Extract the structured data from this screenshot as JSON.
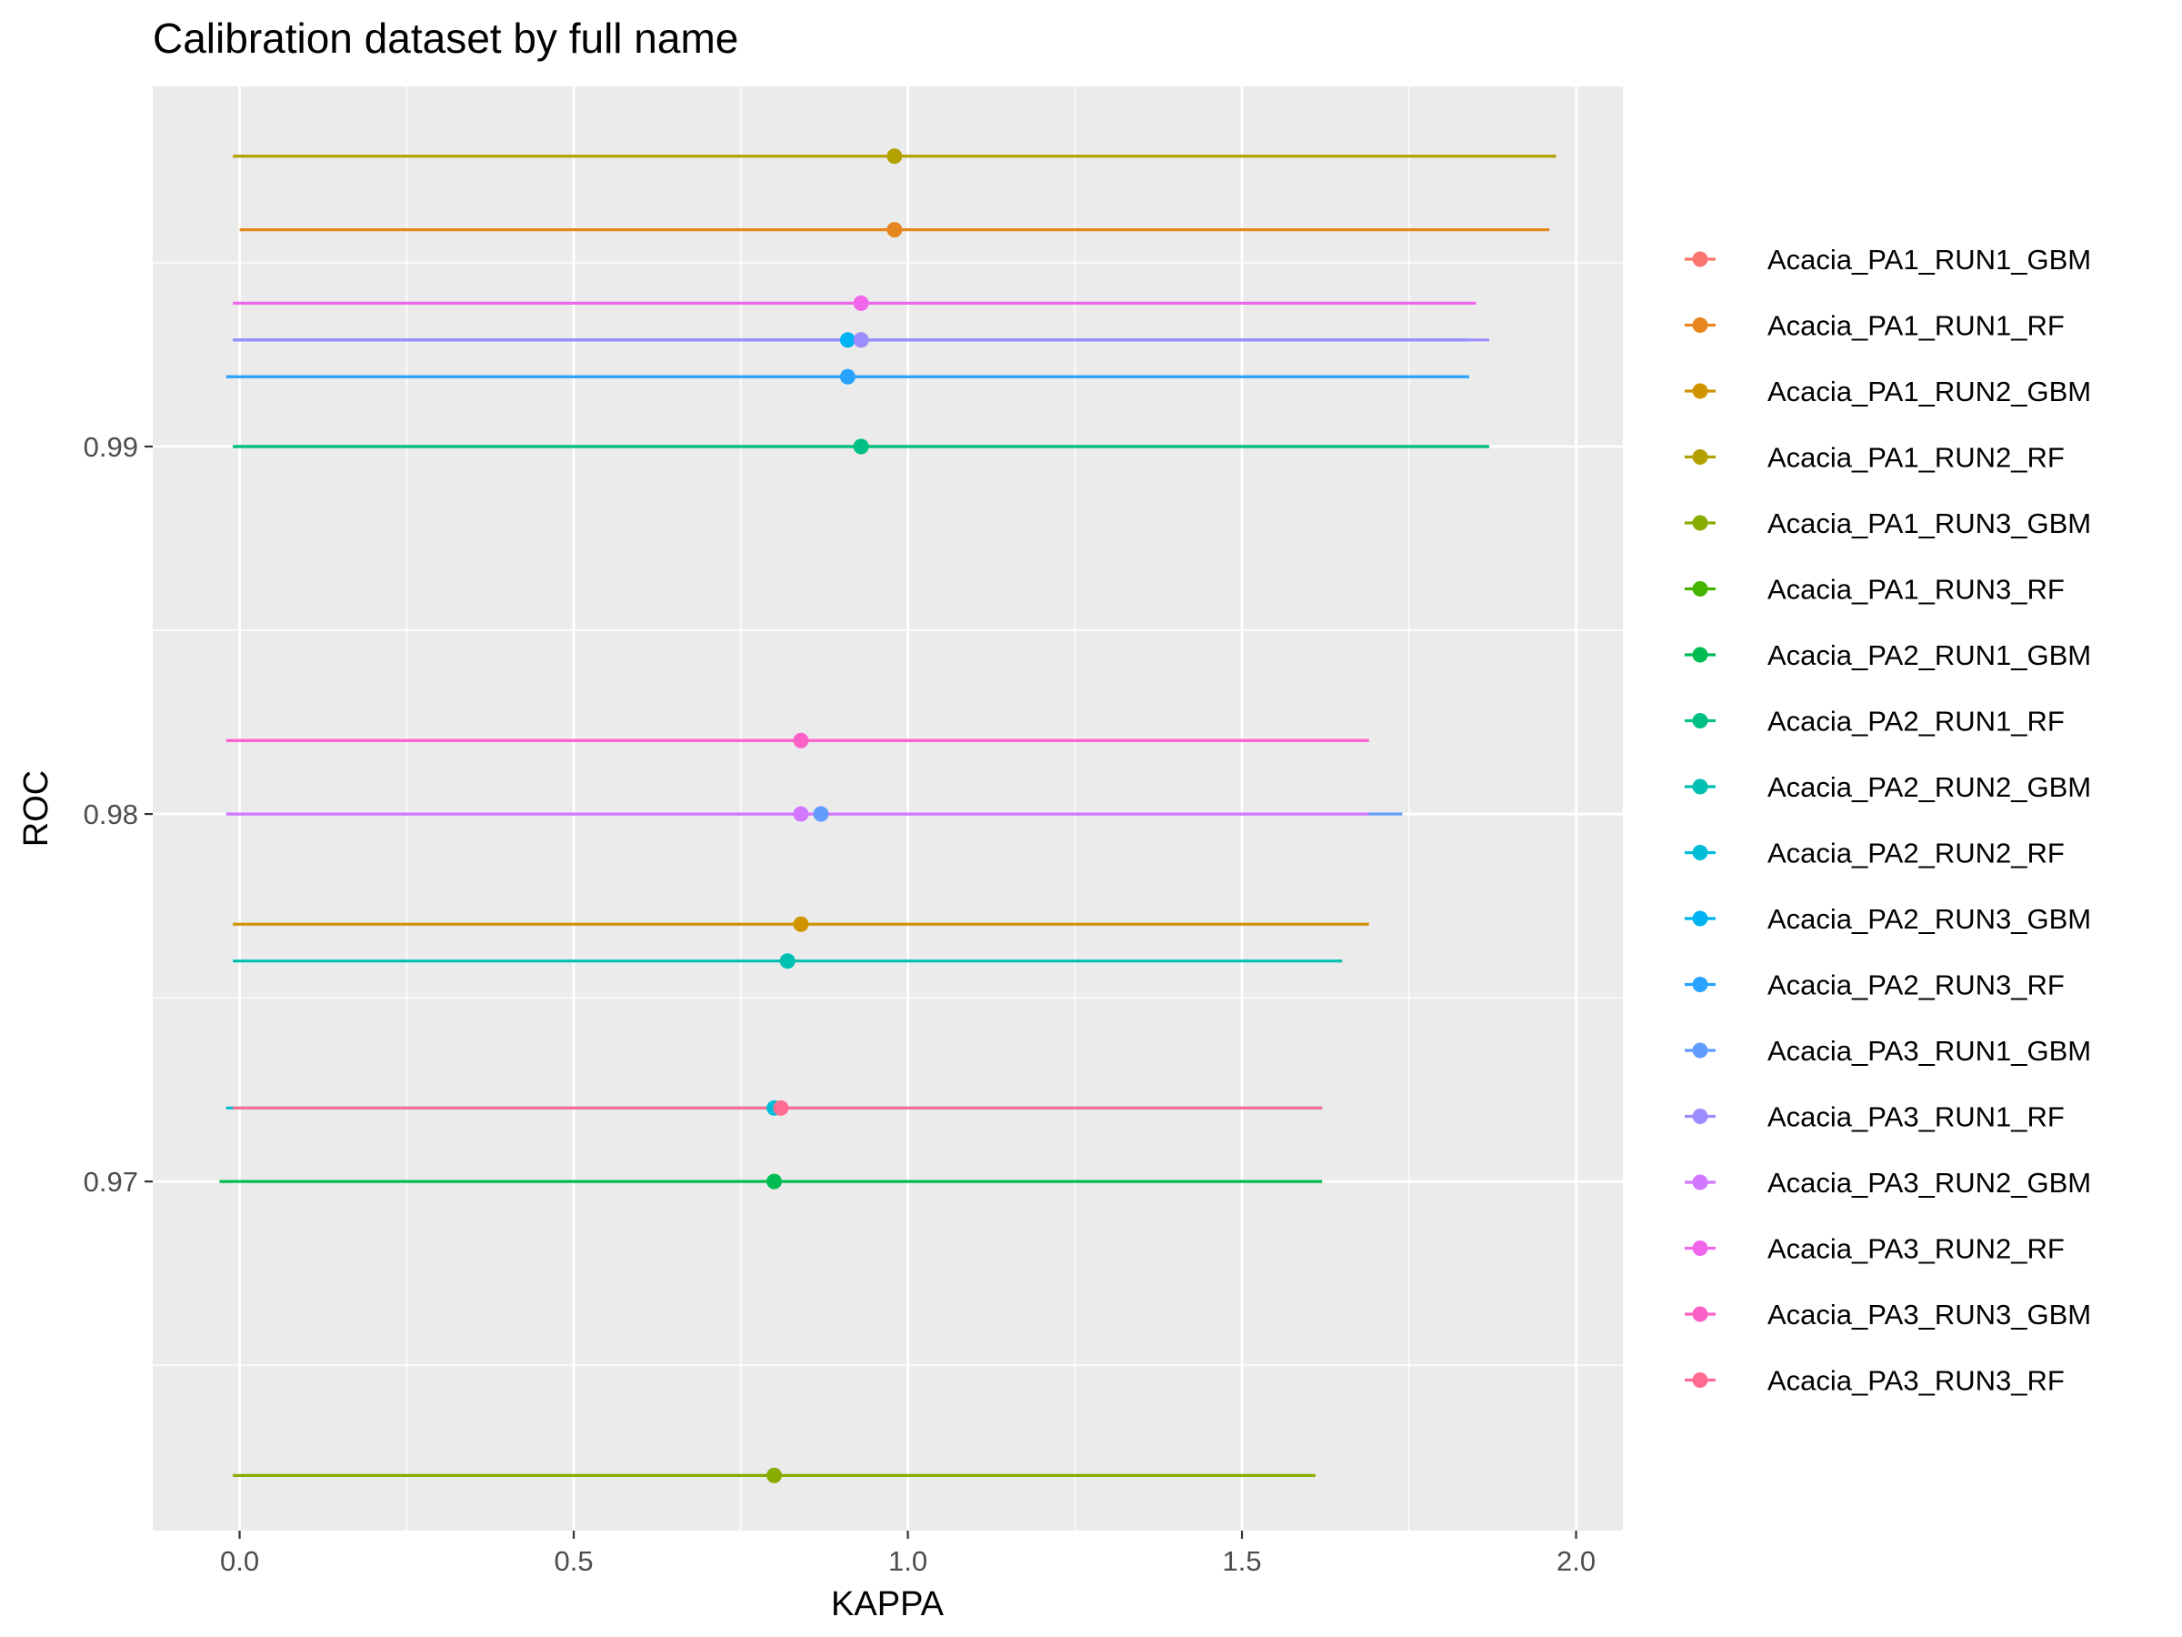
{
  "chart_data": {
    "type": "scatter",
    "title": "Calibration dataset by full name",
    "xlabel": "KAPPA",
    "ylabel": "ROC",
    "xlim": [
      -0.13,
      2.07
    ],
    "ylim": [
      0.9605,
      0.9998
    ],
    "x_ticks": [
      0.0,
      0.5,
      1.0,
      1.5,
      2.0
    ],
    "x_tick_labels": [
      "0.0",
      "0.5",
      "1.0",
      "1.5",
      "2.0"
    ],
    "y_ticks": [
      0.97,
      0.98,
      0.99
    ],
    "y_tick_labels": [
      "0.97",
      "0.98",
      "0.99"
    ],
    "grid": true,
    "legend_position": "right",
    "series": [
      {
        "name": "Acacia_PA1_RUN1_GBM",
        "color": "#F8766D",
        "kappa": 0.93,
        "kappa_min": 0.01,
        "kappa_max": 1.84,
        "roc": 0.9929
      },
      {
        "name": "Acacia_PA1_RUN1_RF",
        "color": "#E7851E",
        "kappa": 0.98,
        "kappa_min": 0.0,
        "kappa_max": 1.96,
        "roc": 0.9959
      },
      {
        "name": "Acacia_PA1_RUN2_GBM",
        "color": "#D09400",
        "kappa": 0.84,
        "kappa_min": -0.01,
        "kappa_max": 1.69,
        "roc": 0.977
      },
      {
        "name": "Acacia_PA1_RUN2_RF",
        "color": "#B2A100",
        "kappa": 0.98,
        "kappa_min": -0.01,
        "kappa_max": 1.97,
        "roc": 0.9979
      },
      {
        "name": "Acacia_PA1_RUN3_GBM",
        "color": "#89AC00",
        "kappa": 0.8,
        "kappa_min": -0.01,
        "kappa_max": 1.61,
        "roc": 0.962
      },
      {
        "name": "Acacia_PA1_RUN3_RF",
        "color": "#45B500",
        "kappa": 0.93,
        "kappa_min": -0.01,
        "kappa_max": 1.87,
        "roc": 0.99
      },
      {
        "name": "Acacia_PA2_RUN1_GBM",
        "color": "#00BC51",
        "kappa": 0.8,
        "kappa_min": -0.03,
        "kappa_max": 1.62,
        "roc": 0.97
      },
      {
        "name": "Acacia_PA2_RUN1_RF",
        "color": "#00C087",
        "kappa": 0.93,
        "kappa_min": -0.01,
        "kappa_max": 1.87,
        "roc": 0.99
      },
      {
        "name": "Acacia_PA2_RUN2_GBM",
        "color": "#00C0B2",
        "kappa": 0.82,
        "kappa_min": -0.01,
        "kappa_max": 1.65,
        "roc": 0.976
      },
      {
        "name": "Acacia_PA2_RUN2_RF",
        "color": "#00BCD6",
        "kappa": 0.8,
        "kappa_min": -0.02,
        "kappa_max": 1.62,
        "roc": 0.972
      },
      {
        "name": "Acacia_PA2_RUN3_GBM",
        "color": "#00B3F2",
        "kappa": 0.91,
        "kappa_min": -0.01,
        "kappa_max": 1.84,
        "roc": 0.9929
      },
      {
        "name": "Acacia_PA2_RUN3_RF",
        "color": "#29A3FF",
        "kappa": 0.91,
        "kappa_min": -0.02,
        "kappa_max": 1.84,
        "roc": 0.9919
      },
      {
        "name": "Acacia_PA3_RUN1_GBM",
        "color": "#619CFF",
        "kappa": 0.87,
        "kappa_min": -0.02,
        "kappa_max": 1.74,
        "roc": 0.98
      },
      {
        "name": "Acacia_PA3_RUN1_RF",
        "color": "#9C8DFF",
        "kappa": 0.93,
        "kappa_min": -0.01,
        "kappa_max": 1.87,
        "roc": 0.9929
      },
      {
        "name": "Acacia_PA3_RUN2_GBM",
        "color": "#D277FF",
        "kappa": 0.84,
        "kappa_min": -0.02,
        "kappa_max": 1.69,
        "roc": 0.98
      },
      {
        "name": "Acacia_PA3_RUN2_RF",
        "color": "#F066EA",
        "kappa": 0.93,
        "kappa_min": -0.01,
        "kappa_max": 1.85,
        "roc": 0.9939
      },
      {
        "name": "Acacia_PA3_RUN3_GBM",
        "color": "#FC61C8",
        "kappa": 0.84,
        "kappa_min": -0.02,
        "kappa_max": 1.69,
        "roc": 0.982
      },
      {
        "name": "Acacia_PA3_RUN3_RF",
        "color": "#FF6C91",
        "kappa": 0.81,
        "kappa_min": -0.01,
        "kappa_max": 1.62,
        "roc": 0.972
      }
    ]
  }
}
